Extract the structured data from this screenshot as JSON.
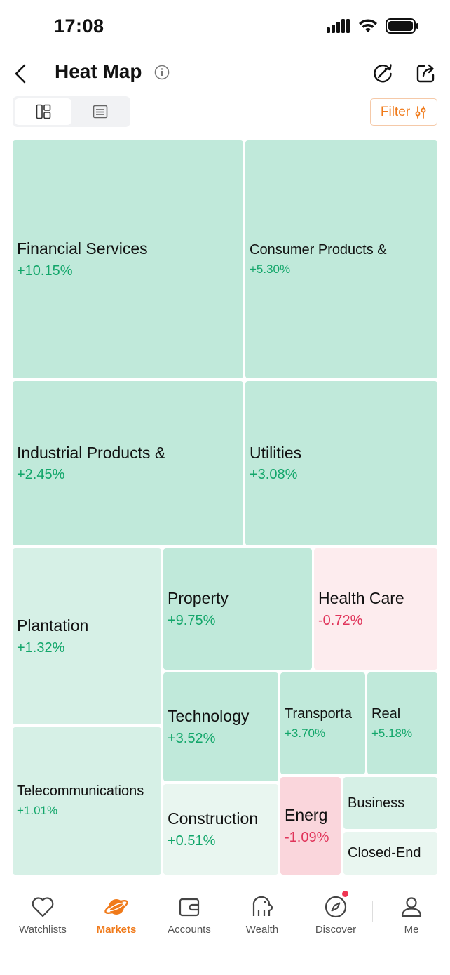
{
  "status": {
    "time": "17:08"
  },
  "nav": {
    "title": "Heat Map"
  },
  "toolbar": {
    "filter_label": "Filter"
  },
  "tiles": [
    {
      "name": "Financial Services",
      "change": "+10.15%"
    },
    {
      "name": "Consumer Products &",
      "change": "+5.30%"
    },
    {
      "name": "Industrial Products &",
      "change": "+2.45%"
    },
    {
      "name": "Utilities",
      "change": "+3.08%"
    },
    {
      "name": "Plantation",
      "change": "+1.32%"
    },
    {
      "name": "Property",
      "change": "+9.75%"
    },
    {
      "name": "Health Care",
      "change": "-0.72%"
    },
    {
      "name": "Telecommunications",
      "change": "+1.01%"
    },
    {
      "name": "Technology",
      "change": "+3.52%"
    },
    {
      "name": "Transporta",
      "change": "+3.70%"
    },
    {
      "name": "Real",
      "change": "+5.18%"
    },
    {
      "name": "Construction",
      "change": "+0.51%"
    },
    {
      "name": "Energ",
      "change": "-1.09%"
    },
    {
      "name": "Business",
      "change": ""
    },
    {
      "name": "Closed-End",
      "change": ""
    }
  ],
  "colors": {
    "positive": "#12a66a",
    "negative": "#e0345a",
    "accent": "#f07a1a"
  },
  "tabbar": {
    "items": [
      {
        "label": "Watchlists",
        "icon": "heart-icon"
      },
      {
        "label": "Markets",
        "icon": "planet-icon"
      },
      {
        "label": "Accounts",
        "icon": "wallet-icon"
      },
      {
        "label": "Wealth",
        "icon": "piggy-bank-icon"
      },
      {
        "label": "Discover",
        "icon": "compass-icon"
      },
      {
        "label": "Me",
        "icon": "user-icon"
      }
    ]
  }
}
